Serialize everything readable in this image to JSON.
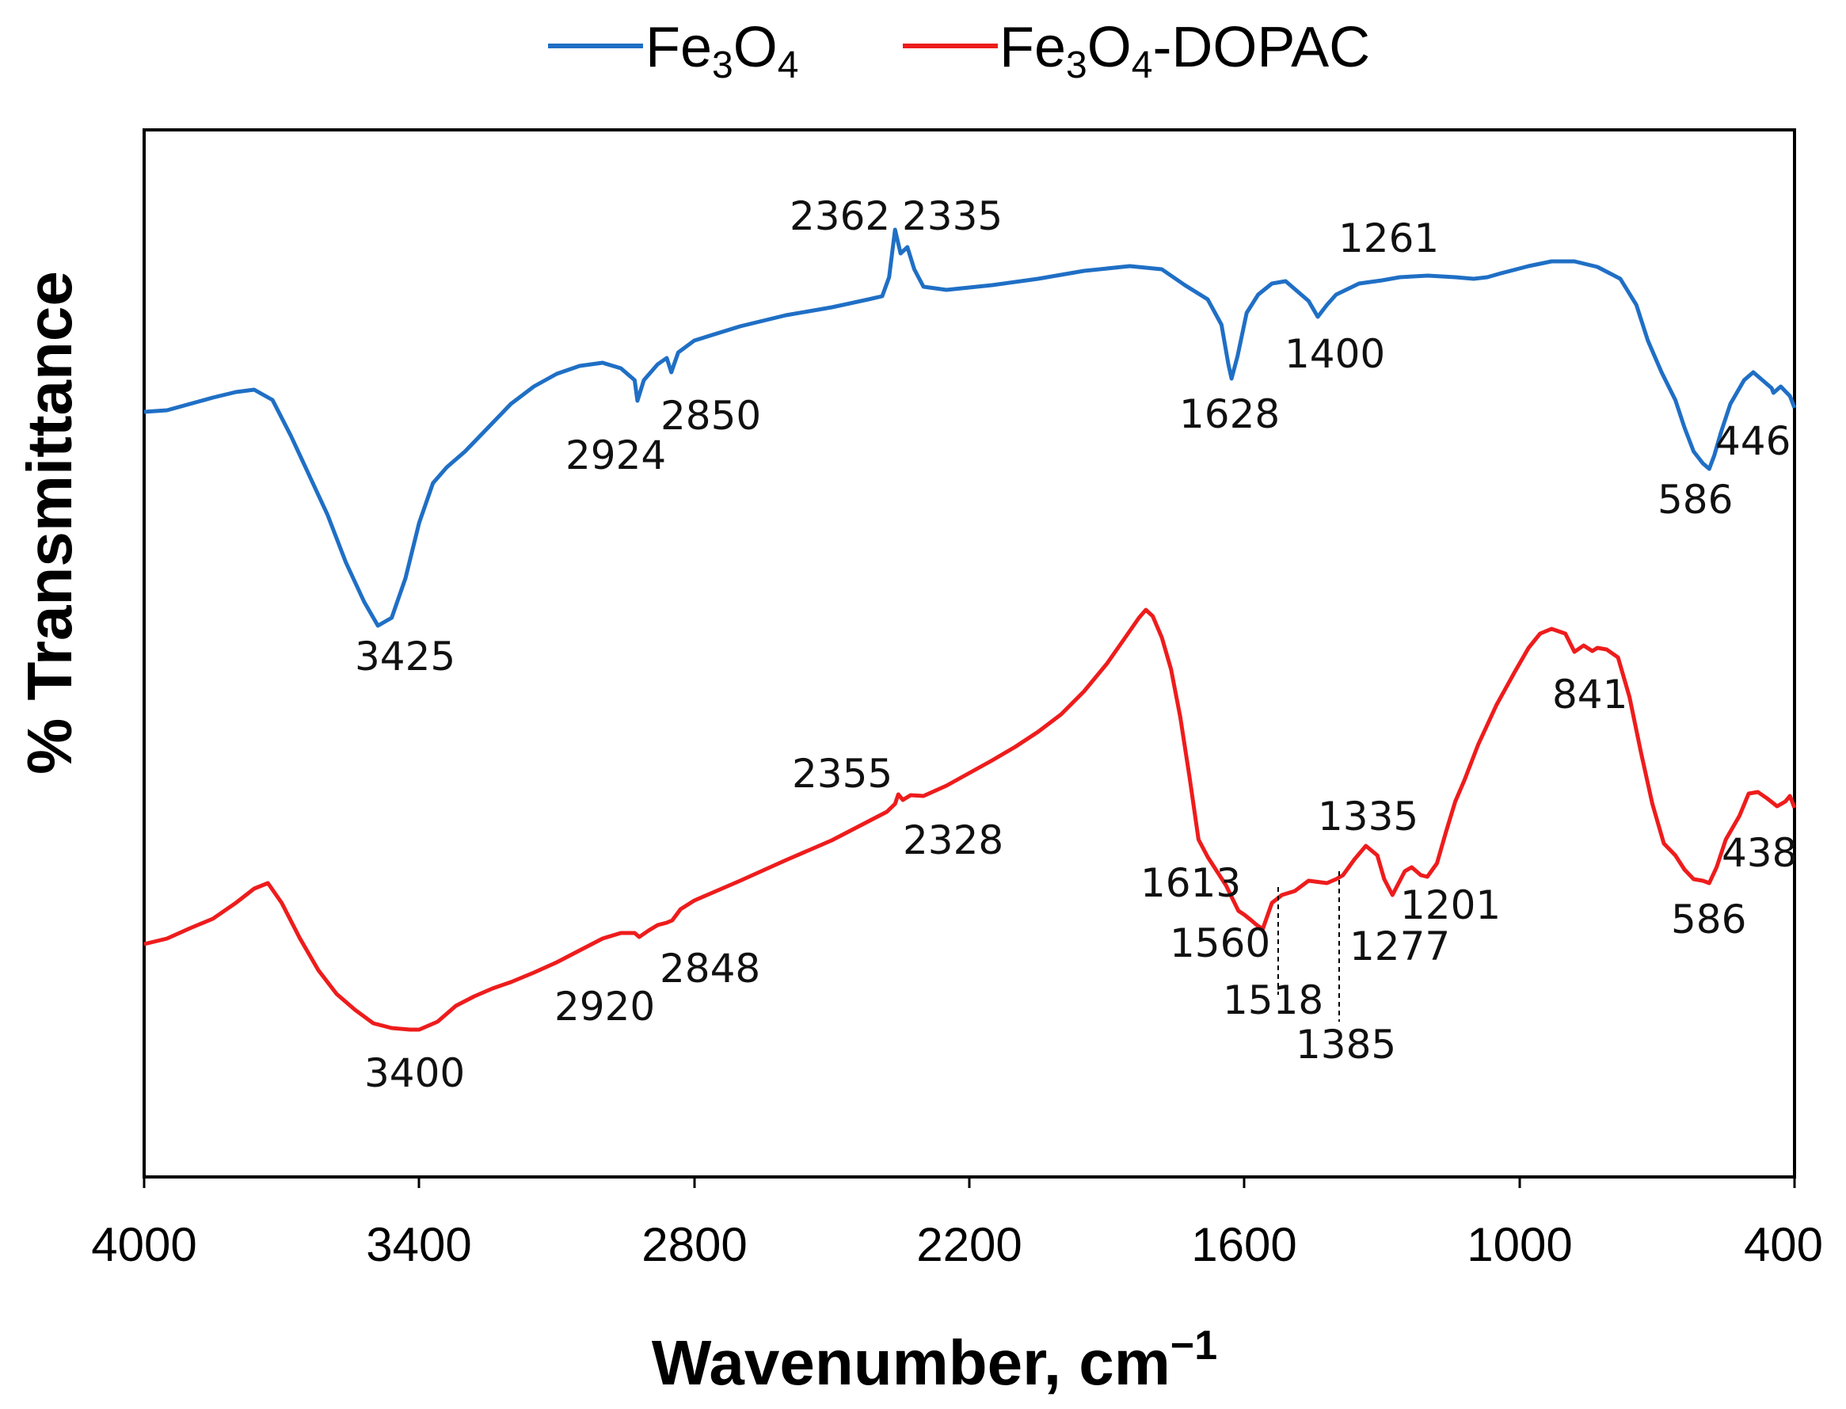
{
  "chart_data": {
    "type": "line",
    "title": "",
    "xlabel": "Wavenumber, cm",
    "xlabel_superscript": "−1",
    "ylabel": "% Transmittance",
    "xlim": [
      4000,
      400
    ],
    "x_ticks": [
      "4000",
      "3400",
      "2800",
      "2200",
      "1600",
      "1000",
      "400"
    ],
    "y_ticks_shown": false,
    "legend_position": "top-center",
    "series": [
      {
        "name": "Fe3O4",
        "legend_parts": [
          "Fe",
          "3",
          "O",
          "4"
        ],
        "color": "#1f6fc5",
        "points": [
          [
            4000,
            520
          ],
          [
            3950,
            518
          ],
          [
            3900,
            510
          ],
          [
            3850,
            502
          ],
          [
            3800,
            495
          ],
          [
            3760,
            492
          ],
          [
            3720,
            505
          ],
          [
            3680,
            550
          ],
          [
            3640,
            600
          ],
          [
            3600,
            650
          ],
          [
            3560,
            710
          ],
          [
            3520,
            760
          ],
          [
            3490,
            790
          ],
          [
            3460,
            780
          ],
          [
            3430,
            730
          ],
          [
            3400,
            660
          ],
          [
            3370,
            610
          ],
          [
            3340,
            590
          ],
          [
            3300,
            570
          ],
          [
            3250,
            540
          ],
          [
            3200,
            510
          ],
          [
            3150,
            488
          ],
          [
            3100,
            472
          ],
          [
            3050,
            462
          ],
          [
            3000,
            458
          ],
          [
            2960,
            465
          ],
          [
            2930,
            480
          ],
          [
            2924,
            506
          ],
          [
            2910,
            480
          ],
          [
            2880,
            460
          ],
          [
            2860,
            452
          ],
          [
            2850,
            470
          ],
          [
            2835,
            445
          ],
          [
            2800,
            430
          ],
          [
            2700,
            412
          ],
          [
            2600,
            398
          ],
          [
            2500,
            388
          ],
          [
            2420,
            378
          ],
          [
            2390,
            374
          ],
          [
            2375,
            350
          ],
          [
            2362,
            290
          ],
          [
            2350,
            320
          ],
          [
            2335,
            312
          ],
          [
            2320,
            340
          ],
          [
            2300,
            362
          ],
          [
            2250,
            366
          ],
          [
            2150,
            360
          ],
          [
            2050,
            352
          ],
          [
            1950,
            342
          ],
          [
            1850,
            336
          ],
          [
            1780,
            340
          ],
          [
            1730,
            360
          ],
          [
            1680,
            378
          ],
          [
            1650,
            410
          ],
          [
            1635,
            460
          ],
          [
            1628,
            478
          ],
          [
            1615,
            450
          ],
          [
            1595,
            395
          ],
          [
            1570,
            372
          ],
          [
            1540,
            358
          ],
          [
            1510,
            355
          ],
          [
            1480,
            370
          ],
          [
            1460,
            380
          ],
          [
            1440,
            400
          ],
          [
            1420,
            385
          ],
          [
            1400,
            372
          ],
          [
            1350,
            358
          ],
          [
            1300,
            354
          ],
          [
            1261,
            350
          ],
          [
            1200,
            348
          ],
          [
            1140,
            350
          ],
          [
            1100,
            352
          ],
          [
            1070,
            350
          ],
          [
            1040,
            345
          ],
          [
            980,
            336
          ],
          [
            930,
            330
          ],
          [
            880,
            330
          ],
          [
            830,
            337
          ],
          [
            780,
            352
          ],
          [
            745,
            385
          ],
          [
            720,
            430
          ],
          [
            690,
            470
          ],
          [
            660,
            505
          ],
          [
            640,
            540
          ],
          [
            620,
            570
          ],
          [
            600,
            585
          ],
          [
            586,
            592
          ],
          [
            575,
            575
          ],
          [
            560,
            545
          ],
          [
            540,
            510
          ],
          [
            510,
            480
          ],
          [
            490,
            470
          ],
          [
            470,
            480
          ],
          [
            450,
            490
          ],
          [
            446,
            496
          ],
          [
            430,
            488
          ],
          [
            410,
            500
          ],
          [
            400,
            515
          ]
        ],
        "peak_labels": [
          "3425",
          "2924",
          "2850",
          "2362",
          "2335",
          "1628",
          "1400",
          "1261",
          "586",
          "446"
        ]
      },
      {
        "name": "Fe3O4-DOPAC",
        "legend_parts": [
          "Fe",
          "3",
          "O",
          "4",
          "-DOPAC"
        ],
        "color": "#ee1c1c",
        "points": [
          [
            4000,
            1192
          ],
          [
            3950,
            1185
          ],
          [
            3900,
            1172
          ],
          [
            3850,
            1160
          ],
          [
            3800,
            1140
          ],
          [
            3760,
            1122
          ],
          [
            3730,
            1115
          ],
          [
            3700,
            1140
          ],
          [
            3660,
            1185
          ],
          [
            3620,
            1225
          ],
          [
            3580,
            1255
          ],
          [
            3540,
            1275
          ],
          [
            3500,
            1292
          ],
          [
            3460,
            1298
          ],
          [
            3420,
            1300
          ],
          [
            3400,
            1300
          ],
          [
            3360,
            1290
          ],
          [
            3320,
            1270
          ],
          [
            3280,
            1258
          ],
          [
            3240,
            1248
          ],
          [
            3200,
            1240
          ],
          [
            3150,
            1228
          ],
          [
            3100,
            1215
          ],
          [
            3050,
            1200
          ],
          [
            3000,
            1185
          ],
          [
            2960,
            1178
          ],
          [
            2930,
            1178
          ],
          [
            2920,
            1183
          ],
          [
            2900,
            1175
          ],
          [
            2880,
            1168
          ],
          [
            2860,
            1165
          ],
          [
            2848,
            1162
          ],
          [
            2830,
            1148
          ],
          [
            2800,
            1137
          ],
          [
            2700,
            1112
          ],
          [
            2600,
            1086
          ],
          [
            2500,
            1061
          ],
          [
            2420,
            1037
          ],
          [
            2380,
            1025
          ],
          [
            2362,
            1015
          ],
          [
            2355,
            1003
          ],
          [
            2345,
            1010
          ],
          [
            2328,
            1004
          ],
          [
            2300,
            1005
          ],
          [
            2250,
            992
          ],
          [
            2200,
            976
          ],
          [
            2150,
            960
          ],
          [
            2100,
            943
          ],
          [
            2050,
            924
          ],
          [
            2000,
            902
          ],
          [
            1950,
            873
          ],
          [
            1900,
            838
          ],
          [
            1860,
            805
          ],
          [
            1830,
            780
          ],
          [
            1815,
            770
          ],
          [
            1800,
            778
          ],
          [
            1780,
            805
          ],
          [
            1760,
            845
          ],
          [
            1740,
            905
          ],
          [
            1720,
            980
          ],
          [
            1700,
            1060
          ],
          [
            1680,
            1082
          ],
          [
            1660,
            1100
          ],
          [
            1640,
            1118
          ],
          [
            1625,
            1136
          ],
          [
            1613,
            1150
          ],
          [
            1600,
            1155
          ],
          [
            1585,
            1162
          ],
          [
            1573,
            1168
          ],
          [
            1560,
            1173
          ],
          [
            1540,
            1140
          ],
          [
            1518,
            1130
          ],
          [
            1490,
            1125
          ],
          [
            1460,
            1112
          ],
          [
            1420,
            1115
          ],
          [
            1400,
            1110
          ],
          [
            1385,
            1105
          ],
          [
            1360,
            1085
          ],
          [
            1335,
            1068
          ],
          [
            1310,
            1080
          ],
          [
            1295,
            1110
          ],
          [
            1277,
            1130
          ],
          [
            1250,
            1100
          ],
          [
            1235,
            1095
          ],
          [
            1215,
            1105
          ],
          [
            1201,
            1107
          ],
          [
            1180,
            1090
          ],
          [
            1160,
            1050
          ],
          [
            1140,
            1012
          ],
          [
            1120,
            985
          ],
          [
            1090,
            940
          ],
          [
            1050,
            890
          ],
          [
            1010,
            848
          ],
          [
            980,
            818
          ],
          [
            955,
            800
          ],
          [
            930,
            794
          ],
          [
            900,
            800
          ],
          [
            880,
            823
          ],
          [
            860,
            815
          ],
          [
            841,
            822
          ],
          [
            830,
            818
          ],
          [
            810,
            820
          ],
          [
            785,
            830
          ],
          [
            760,
            880
          ],
          [
            735,
            950
          ],
          [
            710,
            1015
          ],
          [
            685,
            1065
          ],
          [
            660,
            1080
          ],
          [
            640,
            1098
          ],
          [
            620,
            1110
          ],
          [
            600,
            1112
          ],
          [
            586,
            1115
          ],
          [
            570,
            1095
          ],
          [
            550,
            1060
          ],
          [
            520,
            1030
          ],
          [
            500,
            1002
          ],
          [
            480,
            1000
          ],
          [
            460,
            1008
          ],
          [
            438,
            1018
          ],
          [
            420,
            1012
          ],
          [
            410,
            1005
          ],
          [
            400,
            1020
          ]
        ],
        "peak_labels": [
          "3400",
          "2920",
          "2848",
          "2355",
          "2328",
          "1613",
          "1560",
          "1518",
          "1385",
          "1335",
          "1277",
          "1201",
          "841",
          "586",
          "438"
        ]
      }
    ]
  }
}
